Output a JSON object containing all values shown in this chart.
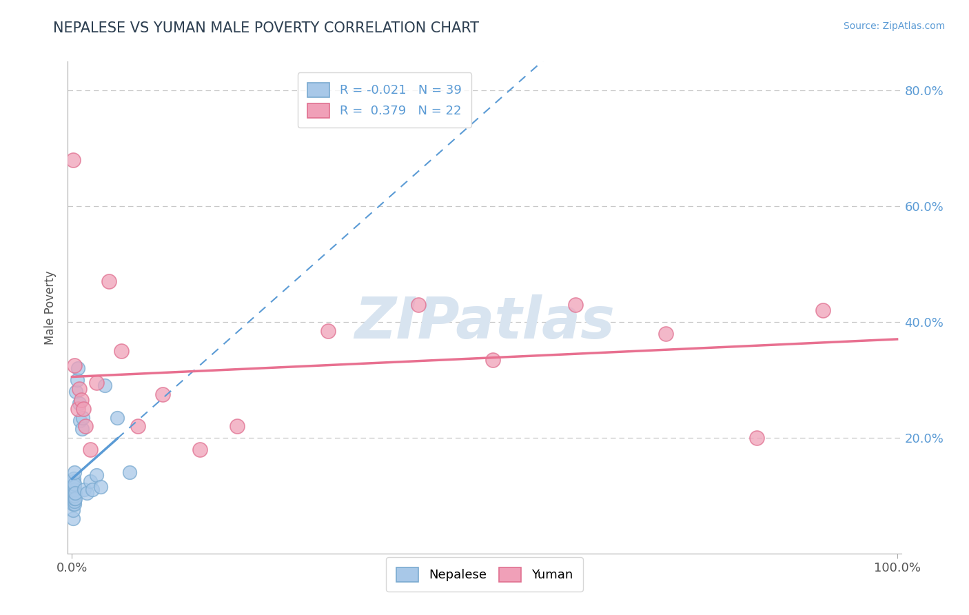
{
  "title": "NEPALESE VS YUMAN MALE POVERTY CORRELATION CHART",
  "source": "Source: ZipAtlas.com",
  "ylabel": "Male Poverty",
  "nepalese_color": "#a8c8e8",
  "nepalese_edge_color": "#7aaad0",
  "yuman_color": "#f0a0b8",
  "yuman_edge_color": "#e07090",
  "nepalese_line_color": "#5b9bd5",
  "yuman_line_color": "#e87090",
  "nepalese_R": -0.021,
  "nepalese_N": 39,
  "yuman_R": 0.379,
  "yuman_N": 22,
  "title_color": "#2c3e50",
  "source_color": "#5b9bd5",
  "right_tick_color": "#5b9bd5",
  "grid_color": "#c8c8c8",
  "background_color": "#ffffff",
  "watermark_color": "#d8e4f0",
  "nepalese_x": [
    0.001,
    0.001,
    0.001,
    0.002,
    0.002,
    0.002,
    0.002,
    0.002,
    0.002,
    0.002,
    0.002,
    0.002,
    0.003,
    0.003,
    0.003,
    0.003,
    0.003,
    0.003,
    0.003,
    0.003,
    0.003,
    0.004,
    0.004,
    0.005,
    0.006,
    0.007,
    0.009,
    0.01,
    0.012,
    0.013,
    0.015,
    0.018,
    0.022,
    0.025,
    0.03,
    0.035,
    0.04,
    0.055,
    0.07
  ],
  "nepalese_y": [
    0.06,
    0.075,
    0.085,
    0.09,
    0.095,
    0.1,
    0.105,
    0.11,
    0.115,
    0.12,
    0.125,
    0.13,
    0.085,
    0.09,
    0.095,
    0.1,
    0.105,
    0.11,
    0.115,
    0.12,
    0.14,
    0.095,
    0.105,
    0.28,
    0.3,
    0.32,
    0.26,
    0.23,
    0.215,
    0.235,
    0.11,
    0.105,
    0.125,
    0.11,
    0.135,
    0.115,
    0.29,
    0.235,
    0.14
  ],
  "yuman_x": [
    0.001,
    0.003,
    0.007,
    0.009,
    0.011,
    0.014,
    0.016,
    0.022,
    0.03,
    0.045,
    0.06,
    0.08,
    0.11,
    0.155,
    0.2,
    0.31,
    0.42,
    0.51,
    0.61,
    0.72,
    0.83,
    0.91
  ],
  "yuman_y": [
    0.68,
    0.325,
    0.25,
    0.285,
    0.265,
    0.25,
    0.22,
    0.18,
    0.295,
    0.47,
    0.35,
    0.22,
    0.275,
    0.18,
    0.22,
    0.385,
    0.43,
    0.335,
    0.43,
    0.38,
    0.2,
    0.42
  ],
  "ylim": [
    0.0,
    0.85
  ],
  "xlim": [
    -0.005,
    1.005
  ]
}
